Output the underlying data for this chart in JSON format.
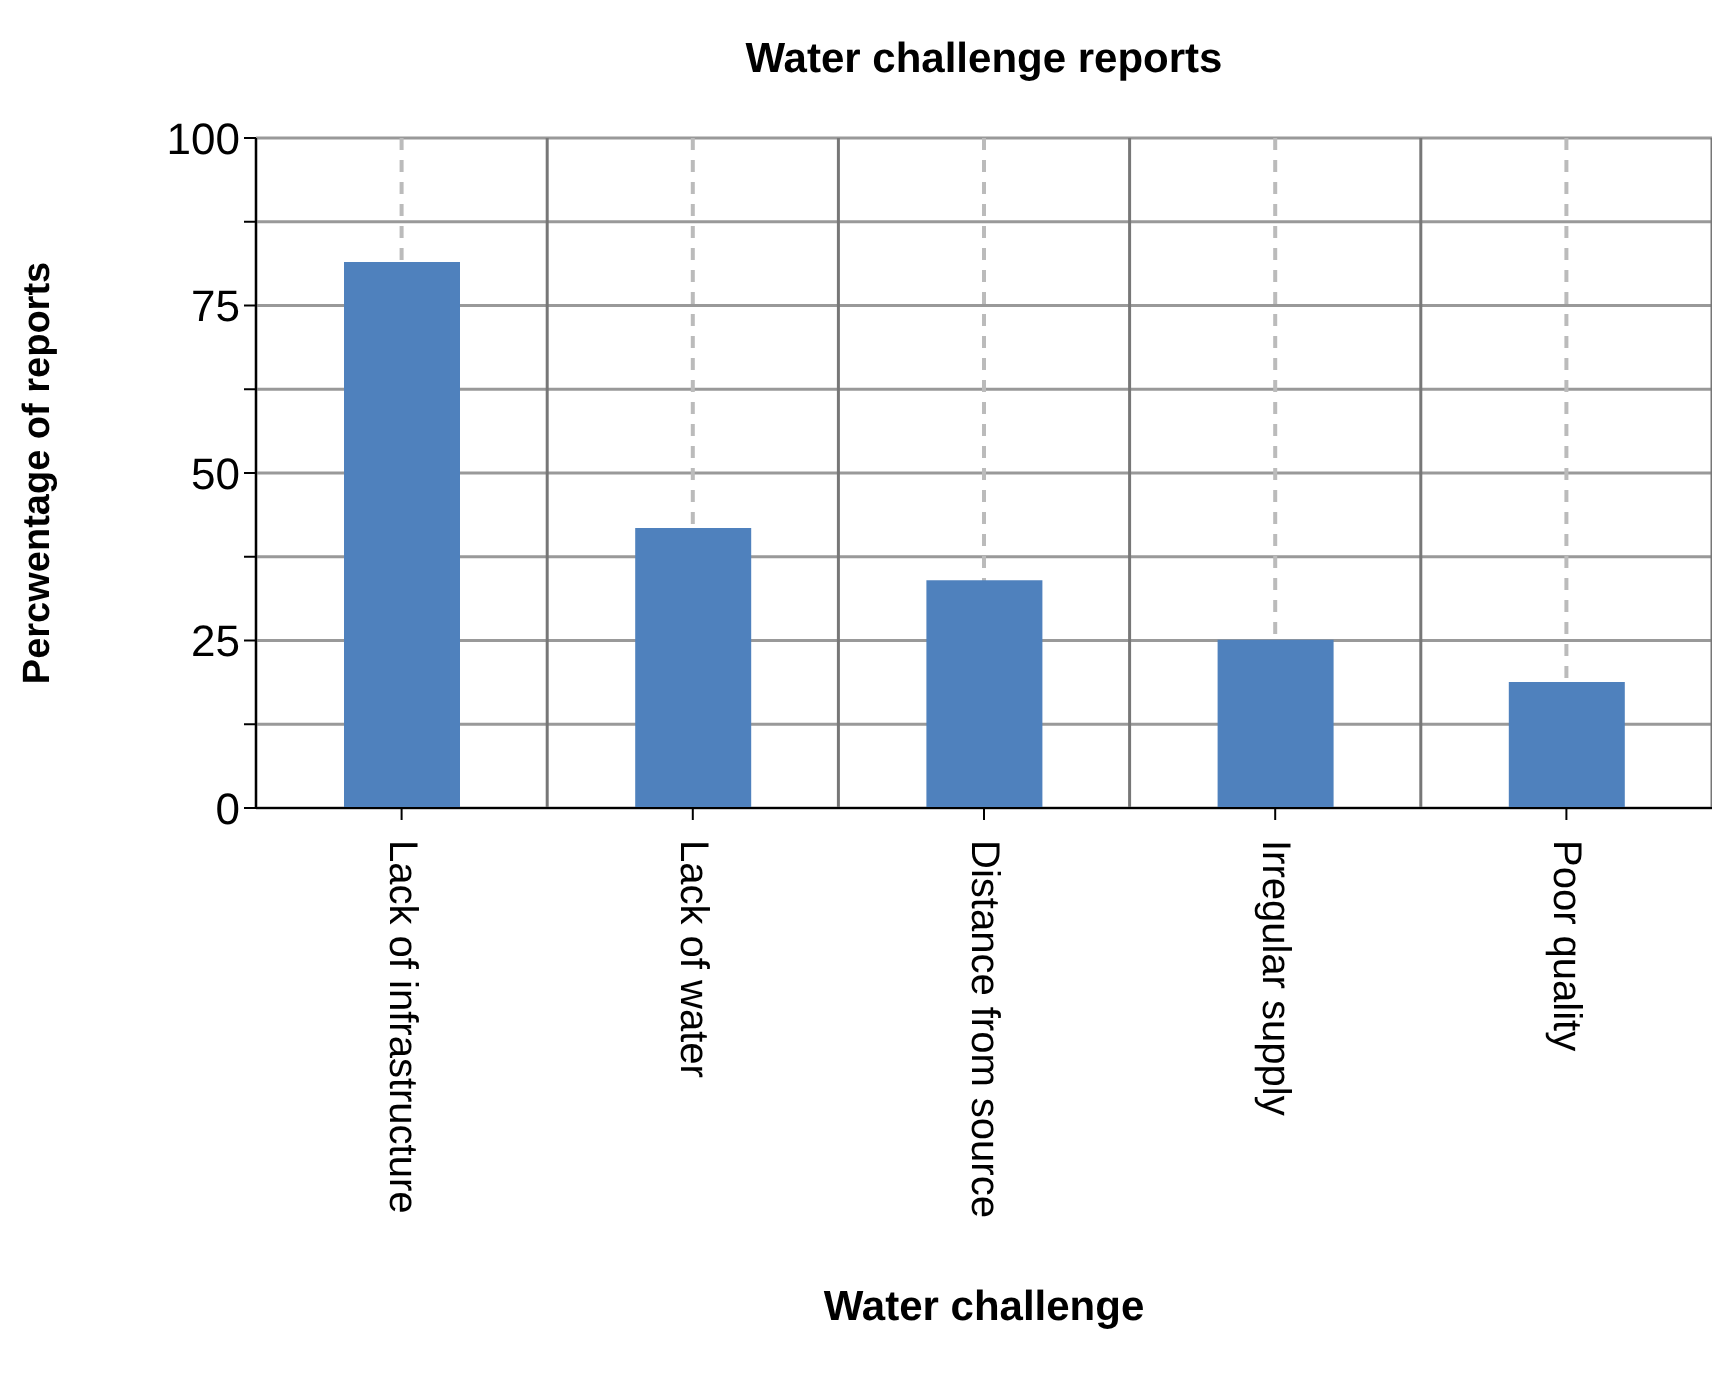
{
  "chart_data": {
    "type": "bar",
    "title": "Water challenge reports",
    "xlabel": "Water challenge",
    "ylabel": "Percwentage of reports",
    "categories": [
      "Lack of infrastructure",
      "Lack of water",
      "Distance from source",
      "Irregular supply",
      "Poor quality"
    ],
    "values": [
      81.5,
      41.8,
      34,
      25.1,
      18.8
    ],
    "color": "#4f81bd",
    "ylim": [
      0,
      100
    ],
    "yticks": [
      0,
      {
        "value": 12.5,
        "label": null
      },
      25,
      {
        "value": 37.5,
        "label": null
      },
      50,
      {
        "value": 62.5,
        "label": null
      },
      75,
      {
        "value": 87.5,
        "label": null
      },
      100
    ],
    "grid": true
  }
}
